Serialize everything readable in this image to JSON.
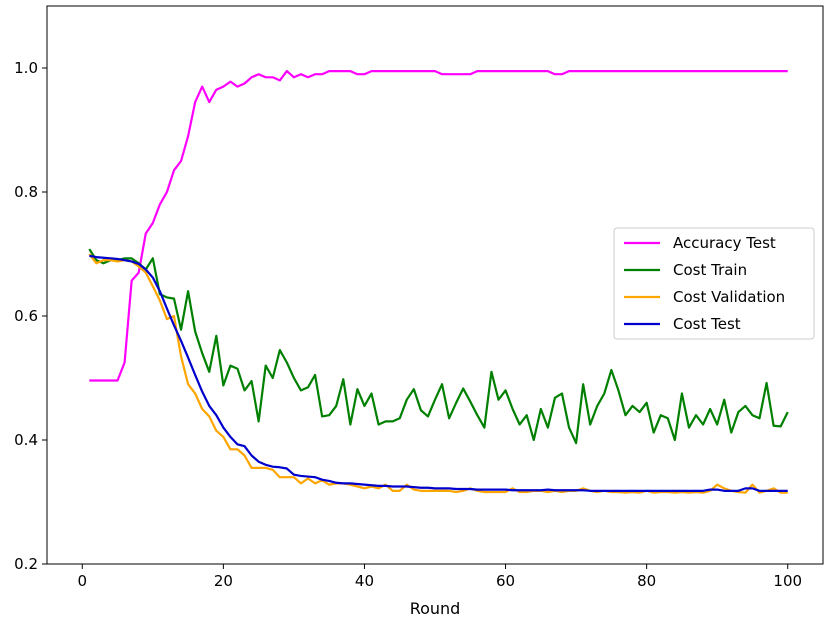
{
  "chart_data": {
    "type": "line",
    "title": "",
    "xlabel": "Round",
    "ylabel": "",
    "xlim": [
      -5,
      105
    ],
    "ylim": [
      0.2,
      1.1
    ],
    "grid": false,
    "legend_position": "center-right",
    "x_ticks": [
      0,
      20,
      40,
      60,
      80,
      100
    ],
    "x_tick_labels": [
      "0",
      "20",
      "40",
      "60",
      "80",
      "100"
    ],
    "y_ticks": [
      0.2,
      0.4,
      0.6,
      0.8,
      1.0
    ],
    "y_tick_labels": [
      "0.2",
      "0.4",
      "0.6",
      "0.8",
      "1.0"
    ],
    "x": [
      1,
      2,
      3,
      4,
      5,
      6,
      7,
      8,
      9,
      10,
      11,
      12,
      13,
      14,
      15,
      16,
      17,
      18,
      19,
      20,
      21,
      22,
      23,
      24,
      25,
      26,
      27,
      28,
      29,
      30,
      31,
      32,
      33,
      34,
      35,
      36,
      37,
      38,
      39,
      40,
      41,
      42,
      43,
      44,
      45,
      46,
      47,
      48,
      49,
      50,
      51,
      52,
      53,
      54,
      55,
      56,
      57,
      58,
      59,
      60,
      61,
      62,
      63,
      64,
      65,
      66,
      67,
      68,
      69,
      70,
      71,
      72,
      73,
      74,
      75,
      76,
      77,
      78,
      79,
      80,
      81,
      82,
      83,
      84,
      85,
      86,
      87,
      88,
      89,
      90,
      91,
      92,
      93,
      94,
      95,
      96,
      97,
      98,
      99,
      100
    ],
    "series": [
      {
        "name": "Accuracy Test",
        "color": "#ff00ff",
        "values": [
          0.496,
          0.496,
          0.496,
          0.496,
          0.496,
          0.525,
          0.657,
          0.67,
          0.733,
          0.75,
          0.78,
          0.8,
          0.835,
          0.85,
          0.89,
          0.945,
          0.97,
          0.945,
          0.965,
          0.97,
          0.978,
          0.97,
          0.975,
          0.985,
          0.99,
          0.985,
          0.985,
          0.98,
          0.995,
          0.985,
          0.99,
          0.985,
          0.99,
          0.99,
          0.995,
          0.995,
          0.995,
          0.995,
          0.99,
          0.99,
          0.995,
          0.995,
          0.995,
          0.995,
          0.995,
          0.995,
          0.995,
          0.995,
          0.995,
          0.995,
          0.99,
          0.99,
          0.99,
          0.99,
          0.99,
          0.995,
          0.995,
          0.995,
          0.995,
          0.995,
          0.995,
          0.995,
          0.995,
          0.995,
          0.995,
          0.995,
          0.99,
          0.99,
          0.995,
          0.995,
          0.995,
          0.995,
          0.995,
          0.995,
          0.995,
          0.995,
          0.995,
          0.995,
          0.995,
          0.995,
          0.995,
          0.995,
          0.995,
          0.995,
          0.995,
          0.995,
          0.995,
          0.995,
          0.995,
          0.995,
          0.995,
          0.995,
          0.995,
          0.995,
          0.995,
          0.995,
          0.995,
          0.995,
          0.995,
          0.995
        ]
      },
      {
        "name": "Cost Train",
        "color": "#008000",
        "values": [
          0.708,
          0.69,
          0.685,
          0.69,
          0.69,
          0.693,
          0.693,
          0.685,
          0.675,
          0.693,
          0.635,
          0.63,
          0.628,
          0.578,
          0.64,
          0.575,
          0.54,
          0.51,
          0.568,
          0.488,
          0.52,
          0.515,
          0.48,
          0.495,
          0.43,
          0.52,
          0.5,
          0.545,
          0.525,
          0.5,
          0.48,
          0.485,
          0.505,
          0.438,
          0.44,
          0.455,
          0.498,
          0.425,
          0.482,
          0.455,
          0.475,
          0.425,
          0.43,
          0.43,
          0.435,
          0.465,
          0.482,
          0.448,
          0.438,
          0.465,
          0.49,
          0.435,
          0.46,
          0.483,
          0.462,
          0.44,
          0.42,
          0.51,
          0.465,
          0.48,
          0.45,
          0.425,
          0.44,
          0.4,
          0.45,
          0.42,
          0.468,
          0.475,
          0.42,
          0.395,
          0.49,
          0.425,
          0.455,
          0.475,
          0.513,
          0.48,
          0.44,
          0.455,
          0.445,
          0.46,
          0.412,
          0.44,
          0.435,
          0.4,
          0.475,
          0.42,
          0.44,
          0.425,
          0.45,
          0.425,
          0.465,
          0.412,
          0.445,
          0.455,
          0.44,
          0.435,
          0.492,
          0.423,
          0.422,
          0.445
        ]
      },
      {
        "name": "Cost Validation",
        "color": "#ffa500",
        "values": [
          0.7,
          0.685,
          0.69,
          0.69,
          0.688,
          0.69,
          0.688,
          0.68,
          0.67,
          0.648,
          0.625,
          0.595,
          0.6,
          0.535,
          0.49,
          0.475,
          0.45,
          0.438,
          0.415,
          0.405,
          0.385,
          0.385,
          0.375,
          0.355,
          0.355,
          0.355,
          0.352,
          0.34,
          0.34,
          0.34,
          0.33,
          0.338,
          0.33,
          0.335,
          0.328,
          0.33,
          0.33,
          0.328,
          0.325,
          0.322,
          0.325,
          0.322,
          0.328,
          0.318,
          0.318,
          0.328,
          0.32,
          0.318,
          0.318,
          0.318,
          0.318,
          0.318,
          0.316,
          0.318,
          0.322,
          0.318,
          0.316,
          0.316,
          0.316,
          0.316,
          0.322,
          0.316,
          0.316,
          0.318,
          0.318,
          0.316,
          0.318,
          0.316,
          0.318,
          0.318,
          0.322,
          0.318,
          0.316,
          0.318,
          0.316,
          0.316,
          0.315,
          0.316,
          0.315,
          0.318,
          0.315,
          0.316,
          0.316,
          0.315,
          0.316,
          0.315,
          0.316,
          0.315,
          0.318,
          0.328,
          0.322,
          0.318,
          0.316,
          0.315,
          0.328,
          0.315,
          0.318,
          0.322,
          0.315,
          0.315
        ]
      },
      {
        "name": "Cost Test",
        "color": "#0000cd",
        "values": [
          0.697,
          0.695,
          0.694,
          0.693,
          0.692,
          0.69,
          0.688,
          0.684,
          0.675,
          0.662,
          0.64,
          0.612,
          0.585,
          0.56,
          0.533,
          0.505,
          0.478,
          0.455,
          0.44,
          0.42,
          0.405,
          0.393,
          0.39,
          0.375,
          0.365,
          0.36,
          0.357,
          0.356,
          0.354,
          0.344,
          0.342,
          0.341,
          0.34,
          0.336,
          0.334,
          0.331,
          0.33,
          0.33,
          0.329,
          0.328,
          0.327,
          0.326,
          0.326,
          0.325,
          0.325,
          0.325,
          0.324,
          0.323,
          0.323,
          0.322,
          0.322,
          0.322,
          0.321,
          0.321,
          0.321,
          0.32,
          0.32,
          0.32,
          0.32,
          0.32,
          0.319,
          0.319,
          0.319,
          0.319,
          0.319,
          0.32,
          0.319,
          0.319,
          0.319,
          0.319,
          0.319,
          0.318,
          0.318,
          0.318,
          0.318,
          0.318,
          0.318,
          0.318,
          0.318,
          0.318,
          0.318,
          0.318,
          0.318,
          0.318,
          0.318,
          0.318,
          0.318,
          0.318,
          0.32,
          0.32,
          0.318,
          0.318,
          0.318,
          0.322,
          0.322,
          0.318,
          0.318,
          0.318,
          0.318,
          0.318
        ]
      }
    ]
  }
}
